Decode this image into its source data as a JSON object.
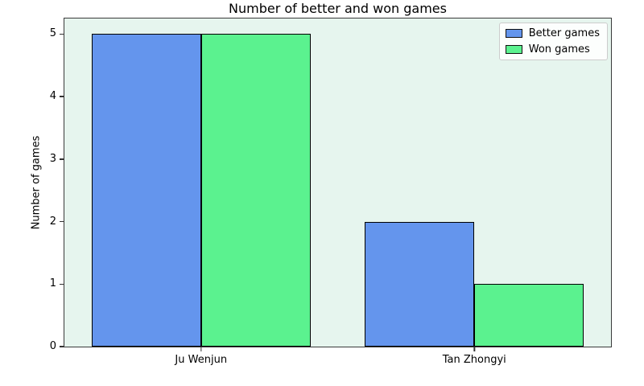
{
  "figure": {
    "background": "#FFFFFF"
  },
  "chart_data": {
    "type": "bar",
    "title": "Number of better and won games",
    "xlabel": "",
    "ylabel": "Number of games",
    "categories": [
      "Ju Wenjun",
      "Tan Zhongyi"
    ],
    "series": [
      {
        "name": "Better games",
        "color": "#6495ED",
        "values": [
          5,
          2
        ]
      },
      {
        "name": "Won games",
        "color": "#5BF28F",
        "values": [
          5,
          1
        ]
      }
    ],
    "yticks": [
      0,
      1,
      2,
      3,
      4,
      5
    ],
    "ylim": [
      0,
      5.25
    ],
    "xlim": [
      -0.5,
      1.5
    ],
    "bar_width": 0.4,
    "grid": false,
    "legend_position": "upper right",
    "colors": {
      "plot_background": "#E6F5EE",
      "bar_edge": "#000000",
      "spine": "#3A3A3A",
      "legend_border": "#CCCCCC",
      "legend_background": "#FFFFFF"
    }
  }
}
